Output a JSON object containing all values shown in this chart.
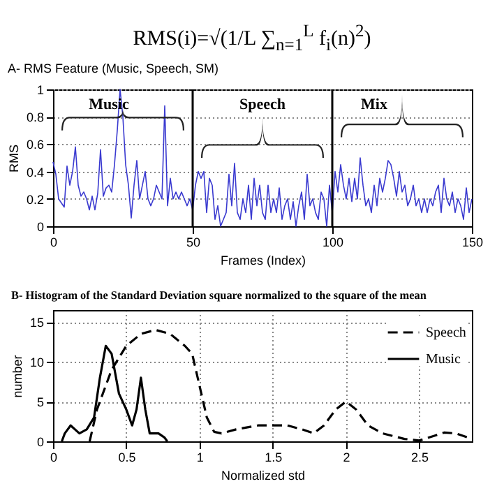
{
  "chart_data": [
    {
      "type": "line",
      "title": "A- RMS Feature (Music, Speech, SM)",
      "xlabel": "Frames (Index)",
      "ylabel": "RMS",
      "xlim": [
        0,
        150
      ],
      "xticks": [
        0,
        50,
        100,
        150
      ],
      "ylim": [
        0,
        1
      ],
      "yticks": [
        0,
        0.2,
        0.4,
        0.6,
        0.8,
        1
      ],
      "grid": "y",
      "annotations": [
        "RMS(i)=√(1/L ∑$_{n=1}$$^{L}$ f$_{i}$(n)$^{2}$)",
        "Music",
        "Speech",
        "Mix"
      ],
      "ref_lines": [
        {
          "axis": "x",
          "value": 50,
          "color": "#000000"
        },
        {
          "axis": "x",
          "value": 100,
          "color": "#000000"
        }
      ],
      "series": [
        {
          "color": "#3a3ad0",
          "x": [
            0,
            1,
            2,
            3,
            4,
            5,
            6,
            7,
            8,
            9,
            10,
            11,
            12,
            13,
            14,
            15,
            16,
            17,
            18,
            19,
            20,
            21,
            22,
            23,
            24,
            25,
            26,
            27,
            28,
            29,
            30,
            31,
            32,
            33,
            34,
            35,
            36,
            37,
            38,
            39,
            40,
            41,
            42,
            43,
            44,
            45,
            46,
            47,
            48,
            49,
            50,
            51,
            52,
            53,
            54,
            55,
            56,
            57,
            58,
            59,
            60,
            61,
            62,
            63,
            64,
            65,
            66,
            67,
            68,
            69,
            70,
            71,
            72,
            73,
            74,
            75,
            76,
            77,
            78,
            79,
            80,
            81,
            82,
            83,
            84,
            85,
            86,
            87,
            88,
            89,
            90,
            91,
            92,
            93,
            94,
            95,
            96,
            97,
            98,
            99,
            100,
            101,
            102,
            103,
            104,
            105,
            106,
            107,
            108,
            109,
            110,
            111,
            112,
            113,
            114,
            115,
            116,
            117,
            118,
            119,
            120,
            121,
            122,
            123,
            124,
            125,
            126,
            127,
            128,
            129,
            130,
            131,
            132,
            133,
            134,
            135,
            136,
            137,
            138,
            139,
            140,
            141,
            142,
            143,
            144,
            145,
            146,
            147,
            148,
            149,
            150
          ],
          "values": [
            0.47,
            0.38,
            0.2,
            0.17,
            0.14,
            0.44,
            0.3,
            0.4,
            0.58,
            0.3,
            0.22,
            0.25,
            0.2,
            0.12,
            0.22,
            0.12,
            0.24,
            0.56,
            0.22,
            0.28,
            0.3,
            0.25,
            0.45,
            0.7,
            1.0,
            0.8,
            0.45,
            0.3,
            0.06,
            0.3,
            0.48,
            0.2,
            0.3,
            0.4,
            0.2,
            0.15,
            0.2,
            0.3,
            0.25,
            0.2,
            0.88,
            0.15,
            0.35,
            0.2,
            0.25,
            0.2,
            0.25,
            0.2,
            0.15,
            0.2,
            0.12,
            0.3,
            0.4,
            0.35,
            0.4,
            0.1,
            0.35,
            0.3,
            0.05,
            0.15,
            0.0,
            0.05,
            0.1,
            0.38,
            0.15,
            0.46,
            0.1,
            0.05,
            0.2,
            0.1,
            0.3,
            0.05,
            0.35,
            0.15,
            0.3,
            0.1,
            0.05,
            0.3,
            0.1,
            0.2,
            0.1,
            0.28,
            0.05,
            0.15,
            0.2,
            0.05,
            0.18,
            0.0,
            0.15,
            0.25,
            0.05,
            0.38,
            0.15,
            0.2,
            0.1,
            0.05,
            0.25,
            0.2,
            0.0,
            0.3,
            0.1,
            0.4,
            0.25,
            0.45,
            0.3,
            0.2,
            0.35,
            0.18,
            0.35,
            0.2,
            0.5,
            0.3,
            0.15,
            0.2,
            0.1,
            0.3,
            0.15,
            0.35,
            0.25,
            0.35,
            0.48,
            0.45,
            0.35,
            0.22,
            0.4,
            0.25,
            0.3,
            0.15,
            0.2,
            0.3,
            0.15,
            0.2,
            0.1,
            0.2,
            0.1,
            0.2,
            0.15,
            0.25,
            0.3,
            0.1,
            0.35,
            0.2,
            0.15,
            0.25,
            0.1,
            0.2,
            0.15,
            0.05,
            0.28,
            0.1,
            0.2
          ]
        }
      ]
    },
    {
      "type": "line",
      "title": "B- Histogram of the Standard Deviation square normalized to the square of the mean",
      "xlabel": "Normalized std",
      "ylabel": "number",
      "xlim": [
        0,
        2.86
      ],
      "xticks": [
        0,
        0.5,
        1,
        1.5,
        2,
        2.5
      ],
      "ylim": [
        0,
        16.5
      ],
      "yticks": [
        0,
        5,
        10,
        15
      ],
      "grid": true,
      "legend": "top right",
      "series": [
        {
          "name": "Speech",
          "color": "#000000",
          "line_style": "dashed",
          "x": [
            0.25,
            0.3,
            0.4,
            0.5,
            0.6,
            0.7,
            0.8,
            0.9,
            0.95,
            1.0,
            1.05,
            1.1,
            1.15,
            1.25,
            1.4,
            1.6,
            1.7,
            1.78,
            1.85,
            1.93,
            2.0,
            2.07,
            2.15,
            2.25,
            2.4,
            2.5,
            2.57,
            2.67,
            2.75,
            2.86
          ],
          "values": [
            0,
            4,
            9,
            12,
            13.5,
            14,
            13.5,
            12,
            11,
            7,
            3,
            1.2,
            1,
            1.5,
            2,
            2,
            1.5,
            1,
            2,
            4,
            5,
            4,
            2,
            1,
            0.3,
            0.1,
            0.5,
            1.1,
            1,
            0.3
          ]
        },
        {
          "name": "Music",
          "color": "#000000",
          "line_style": "solid",
          "x": [
            0.06,
            0.08,
            0.12,
            0.18,
            0.23,
            0.28,
            0.32,
            0.36,
            0.4,
            0.45,
            0.5,
            0.54,
            0.57,
            0.6,
            0.63,
            0.66,
            0.72,
            0.76,
            0.78
          ],
          "values": [
            0,
            1,
            2,
            1,
            1.5,
            3,
            8,
            12,
            11,
            6,
            4,
            2,
            4,
            8,
            4,
            1,
            1,
            0.5,
            0
          ]
        }
      ]
    }
  ]
}
